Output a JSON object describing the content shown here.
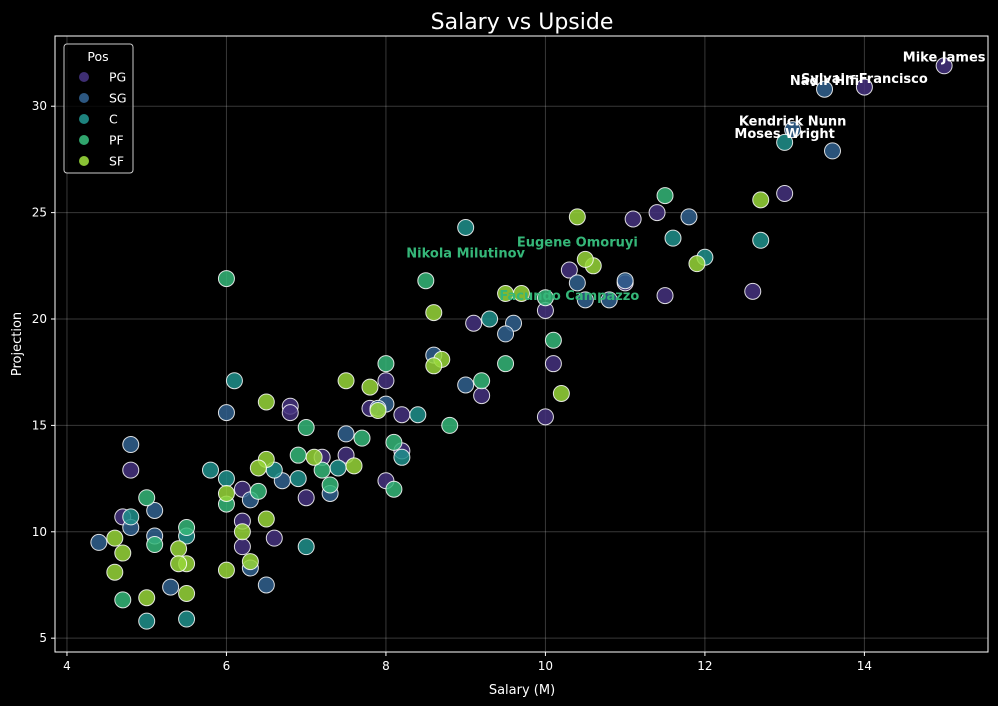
{
  "chart_data": {
    "type": "scatter",
    "title": "Salary vs Upside",
    "xlabel": "Salary (M)",
    "ylabel": "Projection",
    "xlim": [
      3.85,
      15.55
    ],
    "ylim": [
      4.35,
      33.3
    ],
    "xticks": [
      4,
      6,
      8,
      10,
      12,
      14
    ],
    "yticks": [
      5,
      10,
      15,
      20,
      25,
      30
    ],
    "grid": true,
    "legend": {
      "title": "Pos",
      "placement": "top-left",
      "entries": [
        "PG",
        "SG",
        "C",
        "PF",
        "SF"
      ]
    },
    "colors": {
      "PG": "#45337f",
      "SG": "#31618f",
      "C": "#20918c",
      "PF": "#35b779",
      "SF": "#98d73a"
    },
    "series": [
      {
        "name": "PG",
        "points": [
          [
            15.0,
            31.9
          ],
          [
            14.0,
            30.9
          ],
          [
            13.0,
            25.9
          ],
          [
            12.6,
            21.3
          ],
          [
            11.5,
            21.1
          ],
          [
            11.4,
            25.0
          ],
          [
            11.1,
            24.7
          ],
          [
            11.0,
            21.7
          ],
          [
            10.3,
            22.3
          ],
          [
            10.1,
            17.9
          ],
          [
            10.0,
            20.4
          ],
          [
            10.0,
            15.4
          ],
          [
            9.2,
            16.4
          ],
          [
            9.1,
            19.8
          ],
          [
            8.2,
            15.5
          ],
          [
            8.2,
            13.8
          ],
          [
            8.0,
            17.1
          ],
          [
            8.0,
            12.4
          ],
          [
            7.8,
            15.8
          ],
          [
            7.5,
            13.6
          ],
          [
            7.2,
            13.5
          ],
          [
            7.0,
            11.6
          ],
          [
            6.8,
            15.9
          ],
          [
            6.8,
            15.6
          ],
          [
            6.6,
            9.7
          ],
          [
            6.2,
            12.0
          ],
          [
            6.2,
            10.5
          ],
          [
            6.2,
            9.3
          ],
          [
            4.8,
            12.9
          ],
          [
            4.7,
            10.7
          ]
        ]
      },
      {
        "name": "SG",
        "points": [
          [
            13.5,
            30.8
          ],
          [
            13.6,
            27.9
          ],
          [
            13.1,
            28.9
          ],
          [
            11.8,
            24.8
          ],
          [
            11.0,
            21.8
          ],
          [
            10.8,
            20.9
          ],
          [
            10.5,
            20.9
          ],
          [
            10.4,
            21.7
          ],
          [
            9.6,
            19.8
          ],
          [
            9.5,
            19.3
          ],
          [
            9.0,
            16.9
          ],
          [
            8.6,
            18.3
          ],
          [
            8.0,
            16.0
          ],
          [
            7.9,
            15.8
          ],
          [
            7.5,
            14.6
          ],
          [
            7.3,
            11.8
          ],
          [
            6.7,
            12.4
          ],
          [
            6.3,
            11.5
          ],
          [
            6.3,
            8.3
          ],
          [
            6.5,
            7.5
          ],
          [
            6.0,
            15.6
          ],
          [
            5.3,
            7.4
          ],
          [
            5.1,
            9.8
          ],
          [
            5.1,
            11.0
          ],
          [
            4.8,
            14.1
          ],
          [
            4.8,
            10.2
          ],
          [
            4.4,
            9.5
          ]
        ]
      },
      {
        "name": "C",
        "points": [
          [
            13.0,
            28.3
          ],
          [
            12.7,
            23.7
          ],
          [
            12.0,
            22.9
          ],
          [
            11.6,
            23.8
          ],
          [
            9.0,
            24.3
          ],
          [
            9.3,
            20.0
          ],
          [
            8.4,
            15.5
          ],
          [
            8.2,
            13.5
          ],
          [
            7.4,
            13.0
          ],
          [
            7.0,
            9.3
          ],
          [
            6.9,
            12.5
          ],
          [
            6.6,
            12.9
          ],
          [
            6.1,
            17.1
          ],
          [
            6.0,
            12.5
          ],
          [
            5.8,
            12.9
          ],
          [
            5.5,
            9.8
          ],
          [
            5.5,
            5.9
          ],
          [
            5.0,
            5.8
          ],
          [
            4.8,
            10.7
          ]
        ]
      },
      {
        "name": "PF",
        "points": [
          [
            11.5,
            25.8
          ],
          [
            10.1,
            19.0
          ],
          [
            10.0,
            21.0
          ],
          [
            9.5,
            17.9
          ],
          [
            9.2,
            17.1
          ],
          [
            8.8,
            15.0
          ],
          [
            8.5,
            21.8
          ],
          [
            8.1,
            12.0
          ],
          [
            8.1,
            14.2
          ],
          [
            8.0,
            17.9
          ],
          [
            7.7,
            14.4
          ],
          [
            7.3,
            12.2
          ],
          [
            7.2,
            12.9
          ],
          [
            7.0,
            14.9
          ],
          [
            6.9,
            13.6
          ],
          [
            6.4,
            11.9
          ],
          [
            6.0,
            21.9
          ],
          [
            6.0,
            11.3
          ],
          [
            5.5,
            10.2
          ],
          [
            5.1,
            9.4
          ],
          [
            5.0,
            11.6
          ],
          [
            4.7,
            6.8
          ]
        ]
      },
      {
        "name": "SF",
        "points": [
          [
            12.7,
            25.6
          ],
          [
            11.9,
            22.6
          ],
          [
            10.6,
            22.5
          ],
          [
            10.5,
            22.8
          ],
          [
            10.4,
            24.8
          ],
          [
            10.2,
            16.5
          ],
          [
            9.7,
            21.2
          ],
          [
            9.5,
            21.2
          ],
          [
            8.7,
            18.1
          ],
          [
            8.6,
            20.3
          ],
          [
            8.6,
            17.8
          ],
          [
            7.9,
            15.7
          ],
          [
            7.8,
            16.8
          ],
          [
            7.6,
            13.1
          ],
          [
            7.5,
            17.1
          ],
          [
            7.1,
            13.5
          ],
          [
            6.5,
            16.1
          ],
          [
            6.5,
            13.4
          ],
          [
            6.5,
            10.6
          ],
          [
            6.4,
            13.0
          ],
          [
            6.3,
            8.6
          ],
          [
            6.2,
            10.0
          ],
          [
            6.0,
            11.8
          ],
          [
            6.0,
            8.2
          ],
          [
            5.5,
            7.1
          ],
          [
            5.5,
            8.5
          ],
          [
            5.4,
            9.2
          ],
          [
            5.4,
            8.5
          ],
          [
            5.0,
            6.9
          ],
          [
            4.7,
            9.0
          ],
          [
            4.6,
            8.1
          ],
          [
            4.6,
            9.7
          ]
        ]
      }
    ],
    "annotations": [
      {
        "text": "Mike James",
        "x": 15.0,
        "y": 32.1,
        "color": "#ffffff"
      },
      {
        "text": "Sylvain Francisco",
        "x": 14.0,
        "y": 31.1,
        "color": "#ffffff"
      },
      {
        "text": "Nadir Hifi",
        "x": 13.5,
        "y": 31.0,
        "color": "#ffffff"
      },
      {
        "text": "Kendrick Nunn",
        "x": 13.1,
        "y": 29.1,
        "color": "#ffffff"
      },
      {
        "text": "Moses Wright",
        "x": 13.0,
        "y": 28.5,
        "color": "#ffffff"
      },
      {
        "text": "Nikola Milutinov",
        "x": 9.0,
        "y": 22.9,
        "color": "#35b779"
      },
      {
        "text": "Eugene Omoruyi",
        "x": 10.4,
        "y": 23.4,
        "color": "#35b779"
      },
      {
        "text": "Facundo Campazzo",
        "x": 10.3,
        "y": 20.9,
        "color": "#35b779"
      }
    ]
  }
}
